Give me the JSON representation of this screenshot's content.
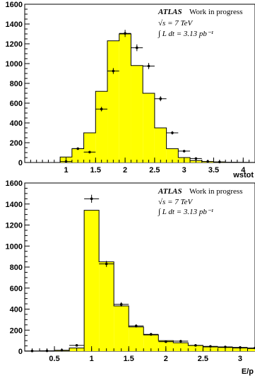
{
  "chart_data": [
    {
      "type": "histogram",
      "xlabel": "wstot",
      "ylabel": "",
      "xlim": [
        0.3,
        4.2
      ],
      "ylim": [
        0,
        1600
      ],
      "xticks": [
        "1",
        "1.5",
        "2",
        "2.5",
        "3",
        "3.5",
        "4"
      ],
      "xtick_values": [
        1,
        1.5,
        2,
        2.5,
        3,
        3.5,
        4
      ],
      "yticks": [
        "0",
        "200",
        "400",
        "600",
        "800",
        "1000",
        "1200",
        "1400",
        "1600"
      ],
      "ytick_values": [
        0,
        200,
        400,
        600,
        800,
        1000,
        1200,
        1400,
        1600
      ],
      "histogram_color": "#ffff00",
      "histogram": {
        "bin_edges": [
          0.5,
          0.7,
          0.9,
          1.1,
          1.3,
          1.5,
          1.7,
          1.9,
          2.1,
          2.3,
          2.5,
          2.7,
          2.9,
          3.1,
          3.3,
          3.5,
          3.7,
          3.9,
          4.1,
          4.3
        ],
        "values": [
          0,
          0,
          55,
          140,
          300,
          720,
          1230,
          1300,
          980,
          700,
          350,
          140,
          50,
          20,
          10,
          5,
          3,
          2,
          1
        ]
      },
      "data_points": {
        "x": [
          1.0,
          1.2,
          1.4,
          1.6,
          1.8,
          2.0,
          2.2,
          2.4,
          2.6,
          2.8,
          3.0,
          3.2,
          3.4,
          3.6
        ],
        "y": [
          10,
          140,
          105,
          540,
          925,
          1305,
          1160,
          975,
          645,
          300,
          115,
          40,
          10,
          5
        ],
        "yerr": [
          3,
          12,
          10,
          23,
          30,
          36,
          34,
          31,
          25,
          17,
          11,
          6,
          3,
          2
        ]
      },
      "annotation": {
        "atlas": "ATLAS",
        "status": "Work in progress",
        "energy": "√s = 7 TeV",
        "lumi": "∫ L dt = 3.13 pb⁻¹"
      }
    },
    {
      "type": "histogram",
      "xlabel": "E/p",
      "ylabel": "",
      "xlim": [
        0.1,
        3.2
      ],
      "ylim": [
        0,
        1600
      ],
      "xticks": [
        "0.5",
        "1",
        "1.5",
        "2",
        "2.5",
        "3"
      ],
      "xtick_values": [
        0.5,
        1,
        1.5,
        2,
        2.5,
        3
      ],
      "yticks": [
        "0",
        "200",
        "400",
        "600",
        "800",
        "1000",
        "1200",
        "1400",
        "1600"
      ],
      "ytick_values": [
        0,
        200,
        400,
        600,
        800,
        1000,
        1200,
        1400,
        1600
      ],
      "histogram_color": "#ffff00",
      "histogram": {
        "bin_edges": [
          0.1,
          0.3,
          0.5,
          0.7,
          0.9,
          1.1,
          1.3,
          1.5,
          1.7,
          1.9,
          2.1,
          2.3,
          2.5,
          2.7,
          2.9,
          3.1,
          3.3
        ],
        "values": [
          0,
          0,
          5,
          30,
          1340,
          850,
          430,
          230,
          155,
          100,
          80,
          55,
          40,
          35,
          30,
          25
        ]
      },
      "data_points": {
        "x": [
          0.2,
          0.4,
          0.6,
          0.8,
          1.0,
          1.2,
          1.4,
          1.6,
          1.8,
          2.0,
          2.2,
          2.4,
          2.6,
          2.8,
          3.0,
          3.2
        ],
        "y": [
          2,
          3,
          8,
          55,
          1450,
          830,
          445,
          240,
          160,
          90,
          95,
          55,
          45,
          40,
          35,
          30
        ],
        "yerr": [
          1,
          2,
          3,
          7,
          38,
          29,
          21,
          15,
          13,
          9,
          10,
          7,
          7,
          6,
          6,
          5
        ]
      },
      "annotation": {
        "atlas": "ATLAS",
        "status": "Work in progress",
        "energy": "√s = 7 TeV",
        "lumi": "∫ L dt = 3.13 pb⁻¹"
      }
    }
  ]
}
